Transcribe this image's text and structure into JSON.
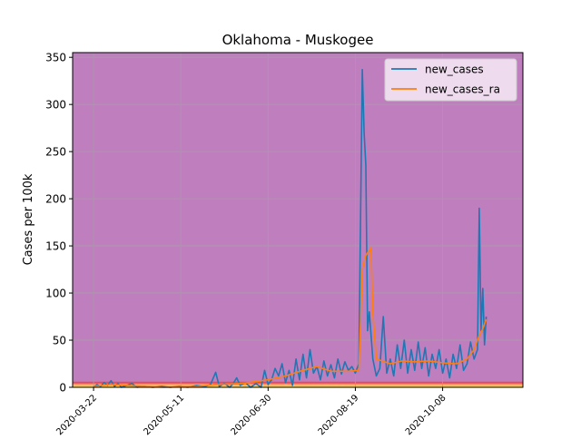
{
  "chart_data": {
    "type": "line",
    "title": "Oklahoma - Muskogee",
    "xlabel": "",
    "ylabel": "Cases per 100k",
    "x_tick_labels": [
      "2020-03-22",
      "2020-05-11",
      "2020-06-30",
      "2020-08-19",
      "2020-10-08"
    ],
    "x_range": [
      "2020-03-10",
      "2020-11-23"
    ],
    "ylim": [
      0,
      355
    ],
    "y_ticks": [
      0,
      50,
      100,
      150,
      200,
      250,
      300,
      350
    ],
    "grid": true,
    "legend_position": "top-right",
    "background_color": "#bf7fbf",
    "background_bands": [
      {
        "from": 0,
        "to": 2,
        "color": "#ffd84d"
      },
      {
        "from": 2,
        "to": 4,
        "color": "#ffa54c"
      },
      {
        "from": 4,
        "to": 6,
        "color": "#f1494c"
      }
    ],
    "series": [
      {
        "name": "new_cases",
        "color": "#1f77b4",
        "points": [
          [
            "2020-03-22",
            0
          ],
          [
            "2020-03-24",
            3
          ],
          [
            "2020-03-26",
            1
          ],
          [
            "2020-03-28",
            5
          ],
          [
            "2020-03-30",
            2
          ],
          [
            "2020-04-01",
            7
          ],
          [
            "2020-04-03",
            1
          ],
          [
            "2020-04-05",
            4
          ],
          [
            "2020-04-07",
            0
          ],
          [
            "2020-04-10",
            2
          ],
          [
            "2020-04-13",
            4
          ],
          [
            "2020-04-16",
            0
          ],
          [
            "2020-04-20",
            1
          ],
          [
            "2020-04-25",
            0
          ],
          [
            "2020-04-30",
            1
          ],
          [
            "2020-05-05",
            0
          ],
          [
            "2020-05-10",
            1
          ],
          [
            "2020-05-15",
            0
          ],
          [
            "2020-05-20",
            2
          ],
          [
            "2020-05-25",
            1
          ],
          [
            "2020-05-28",
            3
          ],
          [
            "2020-05-31",
            16
          ],
          [
            "2020-06-02",
            1
          ],
          [
            "2020-06-05",
            4
          ],
          [
            "2020-06-08",
            0
          ],
          [
            "2020-06-10",
            4
          ],
          [
            "2020-06-12",
            10
          ],
          [
            "2020-06-14",
            2
          ],
          [
            "2020-06-17",
            5
          ],
          [
            "2020-06-20",
            0
          ],
          [
            "2020-06-23",
            4
          ],
          [
            "2020-06-26",
            0
          ],
          [
            "2020-06-28",
            18
          ],
          [
            "2020-06-30",
            3
          ],
          [
            "2020-07-02",
            8
          ],
          [
            "2020-07-04",
            20
          ],
          [
            "2020-07-06",
            12
          ],
          [
            "2020-07-08",
            25
          ],
          [
            "2020-07-10",
            5
          ],
          [
            "2020-07-12",
            18
          ],
          [
            "2020-07-14",
            2
          ],
          [
            "2020-07-16",
            30
          ],
          [
            "2020-07-18",
            8
          ],
          [
            "2020-07-20",
            35
          ],
          [
            "2020-07-22",
            10
          ],
          [
            "2020-07-24",
            40
          ],
          [
            "2020-07-26",
            15
          ],
          [
            "2020-07-28",
            22
          ],
          [
            "2020-07-30",
            8
          ],
          [
            "2020-08-01",
            28
          ],
          [
            "2020-08-03",
            12
          ],
          [
            "2020-08-05",
            24
          ],
          [
            "2020-08-07",
            10
          ],
          [
            "2020-08-09",
            30
          ],
          [
            "2020-08-11",
            14
          ],
          [
            "2020-08-13",
            27
          ],
          [
            "2020-08-15",
            18
          ],
          [
            "2020-08-17",
            22
          ],
          [
            "2020-08-19",
            15
          ],
          [
            "2020-08-21",
            25
          ],
          [
            "2020-08-23",
            337
          ],
          [
            "2020-08-24",
            270
          ],
          [
            "2020-08-25",
            235
          ],
          [
            "2020-08-26",
            60
          ],
          [
            "2020-08-27",
            80
          ],
          [
            "2020-08-29",
            30
          ],
          [
            "2020-08-31",
            12
          ],
          [
            "2020-09-02",
            20
          ],
          [
            "2020-09-04",
            75
          ],
          [
            "2020-09-06",
            15
          ],
          [
            "2020-09-08",
            30
          ],
          [
            "2020-09-10",
            12
          ],
          [
            "2020-09-12",
            45
          ],
          [
            "2020-09-14",
            20
          ],
          [
            "2020-09-16",
            50
          ],
          [
            "2020-09-18",
            15
          ],
          [
            "2020-09-20",
            40
          ],
          [
            "2020-09-22",
            18
          ],
          [
            "2020-09-24",
            48
          ],
          [
            "2020-09-26",
            20
          ],
          [
            "2020-09-28",
            42
          ],
          [
            "2020-09-30",
            12
          ],
          [
            "2020-10-02",
            35
          ],
          [
            "2020-10-04",
            20
          ],
          [
            "2020-10-06",
            40
          ],
          [
            "2020-10-08",
            15
          ],
          [
            "2020-10-10",
            30
          ],
          [
            "2020-10-12",
            10
          ],
          [
            "2020-10-14",
            35
          ],
          [
            "2020-10-16",
            20
          ],
          [
            "2020-10-18",
            45
          ],
          [
            "2020-10-20",
            18
          ],
          [
            "2020-10-22",
            25
          ],
          [
            "2020-10-24",
            48
          ],
          [
            "2020-10-26",
            30
          ],
          [
            "2020-10-28",
            40
          ],
          [
            "2020-10-29",
            190
          ],
          [
            "2020-10-30",
            60
          ],
          [
            "2020-10-31",
            105
          ],
          [
            "2020-11-01",
            45
          ],
          [
            "2020-11-02",
            75
          ]
        ]
      },
      {
        "name": "new_cases_ra",
        "color": "#ff7f0e",
        "points": [
          [
            "2020-03-22",
            1
          ],
          [
            "2020-04-01",
            3
          ],
          [
            "2020-04-10",
            2
          ],
          [
            "2020-04-20",
            1
          ],
          [
            "2020-05-01",
            0
          ],
          [
            "2020-05-20",
            1
          ],
          [
            "2020-06-01",
            3
          ],
          [
            "2020-06-15",
            4
          ],
          [
            "2020-06-30",
            8
          ],
          [
            "2020-07-10",
            12
          ],
          [
            "2020-07-20",
            18
          ],
          [
            "2020-07-28",
            22
          ],
          [
            "2020-08-05",
            17
          ],
          [
            "2020-08-15",
            17
          ],
          [
            "2020-08-21",
            18
          ],
          [
            "2020-08-23",
            125
          ],
          [
            "2020-08-25",
            140
          ],
          [
            "2020-08-28",
            148
          ],
          [
            "2020-08-29",
            80
          ],
          [
            "2020-08-31",
            30
          ],
          [
            "2020-09-08",
            25
          ],
          [
            "2020-09-15",
            28
          ],
          [
            "2020-09-22",
            27
          ],
          [
            "2020-09-30",
            28
          ],
          [
            "2020-10-08",
            26
          ],
          [
            "2020-10-16",
            25
          ],
          [
            "2020-10-22",
            30
          ],
          [
            "2020-10-26",
            40
          ],
          [
            "2020-10-29",
            55
          ],
          [
            "2020-10-31",
            62
          ],
          [
            "2020-11-02",
            72
          ]
        ]
      }
    ]
  }
}
